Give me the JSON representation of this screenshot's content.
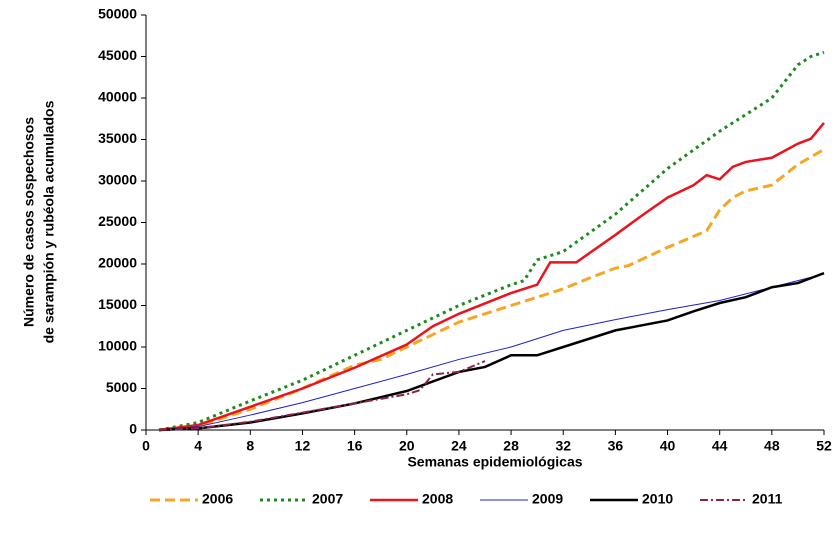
{
  "chart_data": {
    "type": "line",
    "ylabel": [
      "Número de casos sospechosos",
      "de sarampión y rubéola acumulados"
    ],
    "xlabel": "Semanas epidemiológicas",
    "xlim": [
      0,
      52
    ],
    "xticks": [
      0,
      4,
      8,
      12,
      16,
      20,
      24,
      28,
      32,
      36,
      40,
      44,
      48,
      52
    ],
    "ylim": [
      0,
      50000
    ],
    "yticks": [
      0,
      5000,
      10000,
      15000,
      20000,
      25000,
      30000,
      35000,
      40000,
      45000,
      50000
    ],
    "legend": "bottom",
    "series": [
      {
        "name": "2006",
        "color": "#f5a623",
        "style": "dashed",
        "width": 3,
        "x": [
          1,
          4,
          8,
          12,
          16,
          18,
          20,
          24,
          26,
          28,
          30,
          32,
          34,
          36,
          37,
          40,
          43,
          44,
          45,
          46,
          48,
          50,
          52
        ],
        "values": [
          0,
          500,
          2500,
          5000,
          7800,
          8500,
          10000,
          13000,
          14000,
          15000,
          16000,
          17000,
          18300,
          19500,
          19800,
          22000,
          24000,
          26500,
          28000,
          28800,
          29500,
          32000,
          33800
        ]
      },
      {
        "name": "2007",
        "color": "#1e8a1e",
        "style": "dotted",
        "width": 3,
        "x": [
          1,
          4,
          8,
          12,
          16,
          20,
          24,
          28,
          29,
          30,
          32,
          36,
          40,
          44,
          48,
          50,
          51,
          52
        ],
        "values": [
          0,
          900,
          3500,
          6000,
          9000,
          12000,
          15000,
          17500,
          18000,
          20500,
          21500,
          26000,
          31500,
          36000,
          40000,
          44000,
          45000,
          45500
        ]
      },
      {
        "name": "2008",
        "color": "#e8141e",
        "style": "solid",
        "width": 2.5,
        "x": [
          1,
          4,
          8,
          12,
          16,
          20,
          22,
          24,
          28,
          30,
          31,
          33,
          36,
          38,
          40,
          42,
          43,
          44,
          45,
          46,
          48,
          50,
          51,
          52
        ],
        "values": [
          0,
          600,
          2800,
          5000,
          7500,
          10300,
          12500,
          14000,
          16500,
          17500,
          20200,
          20200,
          23500,
          25800,
          28000,
          29500,
          30700,
          30200,
          31700,
          32300,
          32800,
          34500,
          35100,
          37000
        ]
      },
      {
        "name": "2009",
        "color": "#2020c0",
        "style": "solid",
        "width": 1,
        "x": [
          1,
          4,
          8,
          12,
          16,
          20,
          24,
          28,
          32,
          36,
          40,
          44,
          48,
          52
        ],
        "values": [
          0,
          400,
          1800,
          3300,
          5000,
          6700,
          8500,
          10000,
          12000,
          13300,
          14500,
          15600,
          17200,
          18800
        ]
      },
      {
        "name": "2010",
        "color": "#000000",
        "style": "solid",
        "width": 2.5,
        "x": [
          1,
          4,
          8,
          12,
          16,
          20,
          24,
          26,
          28,
          30,
          32,
          36,
          40,
          42,
          44,
          46,
          48,
          50,
          52
        ],
        "values": [
          0,
          200,
          900,
          2000,
          3200,
          4700,
          7000,
          7600,
          9000,
          9000,
          10000,
          12000,
          13200,
          14300,
          15300,
          16000,
          17200,
          17700,
          18900
        ]
      },
      {
        "name": "2011",
        "color": "#8b2252",
        "style": "dashdot",
        "width": 2,
        "x": [
          1,
          4,
          8,
          12,
          16,
          20,
          21,
          22,
          24,
          26
        ],
        "values": [
          0,
          200,
          1000,
          2100,
          3200,
          4300,
          4800,
          6700,
          7000,
          8300
        ]
      }
    ]
  }
}
